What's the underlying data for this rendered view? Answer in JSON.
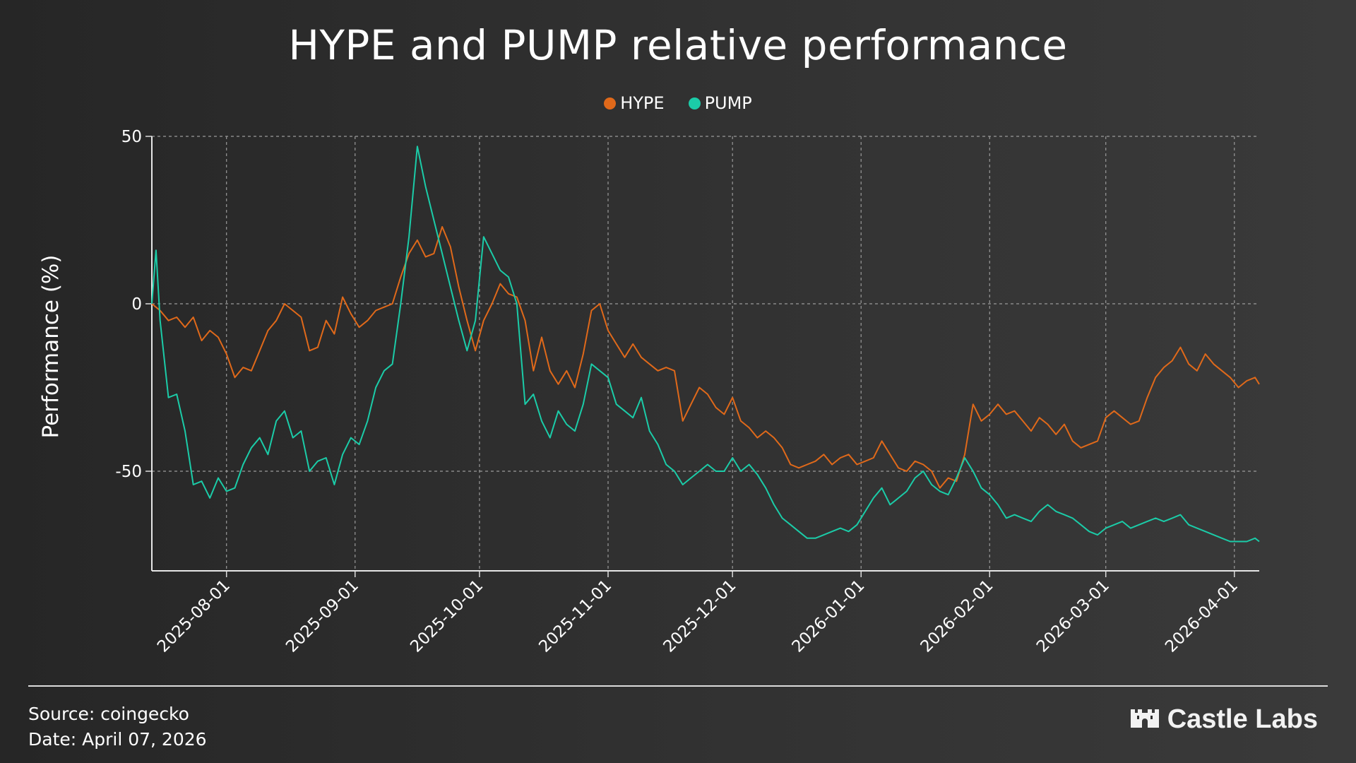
{
  "title": "HYPE and PUMP relative performance",
  "legend": [
    {
      "label": "HYPE",
      "color": "#e0691a"
    },
    {
      "label": "PUMP",
      "color": "#1bcca8"
    }
  ],
  "footer": {
    "source": "Source: coingecko",
    "date": "Date: April 07, 2026"
  },
  "logo": {
    "text": "Castle Labs",
    "icon": "castle-icon"
  },
  "chart_data": {
    "type": "line",
    "title": "HYPE and PUMP relative performance",
    "xlabel": "",
    "ylabel": "Performance (%)",
    "ylim": [
      -80,
      50
    ],
    "yticks": [
      50,
      0,
      -50
    ],
    "xticks": [
      "2025-08-01",
      "2025-09-01",
      "2025-10-01",
      "2025-11-01",
      "2025-12-01",
      "2026-01-01",
      "2026-02-01",
      "2026-03-01",
      "2026-04-01"
    ],
    "xrange": [
      "2025-07-14",
      "2026-04-07"
    ],
    "grid": true,
    "legend_position": "top-center",
    "series": [
      {
        "name": "HYPE",
        "color": "#e0691a",
        "points": [
          [
            "2025-07-14",
            0
          ],
          [
            "2025-07-16",
            -2
          ],
          [
            "2025-07-18",
            -5
          ],
          [
            "2025-07-20",
            -4
          ],
          [
            "2025-07-22",
            -7
          ],
          [
            "2025-07-24",
            -4
          ],
          [
            "2025-07-26",
            -11
          ],
          [
            "2025-07-28",
            -8
          ],
          [
            "2025-07-30",
            -10
          ],
          [
            "2025-08-01",
            -15
          ],
          [
            "2025-08-03",
            -22
          ],
          [
            "2025-08-05",
            -19
          ],
          [
            "2025-08-07",
            -20
          ],
          [
            "2025-08-09",
            -14
          ],
          [
            "2025-08-11",
            -8
          ],
          [
            "2025-08-13",
            -5
          ],
          [
            "2025-08-15",
            0
          ],
          [
            "2025-08-17",
            -2
          ],
          [
            "2025-08-19",
            -4
          ],
          [
            "2025-08-21",
            -14
          ],
          [
            "2025-08-23",
            -13
          ],
          [
            "2025-08-25",
            -5
          ],
          [
            "2025-08-27",
            -9
          ],
          [
            "2025-08-29",
            2
          ],
          [
            "2025-08-31",
            -3
          ],
          [
            "2025-09-02",
            -7
          ],
          [
            "2025-09-04",
            -5
          ],
          [
            "2025-09-06",
            -2
          ],
          [
            "2025-09-08",
            -1
          ],
          [
            "2025-09-10",
            0
          ],
          [
            "2025-09-12",
            8
          ],
          [
            "2025-09-14",
            15
          ],
          [
            "2025-09-16",
            19
          ],
          [
            "2025-09-18",
            14
          ],
          [
            "2025-09-20",
            15
          ],
          [
            "2025-09-22",
            23
          ],
          [
            "2025-09-24",
            17
          ],
          [
            "2025-09-26",
            5
          ],
          [
            "2025-09-28",
            -5
          ],
          [
            "2025-09-30",
            -14
          ],
          [
            "2025-10-02",
            -5
          ],
          [
            "2025-10-04",
            0
          ],
          [
            "2025-10-06",
            6
          ],
          [
            "2025-10-08",
            3
          ],
          [
            "2025-10-10",
            2
          ],
          [
            "2025-10-12",
            -5
          ],
          [
            "2025-10-14",
            -20
          ],
          [
            "2025-10-16",
            -10
          ],
          [
            "2025-10-18",
            -20
          ],
          [
            "2025-10-20",
            -24
          ],
          [
            "2025-10-22",
            -20
          ],
          [
            "2025-10-24",
            -25
          ],
          [
            "2025-10-26",
            -15
          ],
          [
            "2025-10-28",
            -2
          ],
          [
            "2025-10-30",
            0
          ],
          [
            "2025-11-01",
            -8
          ],
          [
            "2025-11-03",
            -12
          ],
          [
            "2025-11-05",
            -16
          ],
          [
            "2025-11-07",
            -12
          ],
          [
            "2025-11-09",
            -16
          ],
          [
            "2025-11-11",
            -18
          ],
          [
            "2025-11-13",
            -20
          ],
          [
            "2025-11-15",
            -19
          ],
          [
            "2025-11-17",
            -20
          ],
          [
            "2025-11-19",
            -35
          ],
          [
            "2025-11-21",
            -30
          ],
          [
            "2025-11-23",
            -25
          ],
          [
            "2025-11-25",
            -27
          ],
          [
            "2025-11-27",
            -31
          ],
          [
            "2025-11-29",
            -33
          ],
          [
            "2025-12-01",
            -28
          ],
          [
            "2025-12-03",
            -35
          ],
          [
            "2025-12-05",
            -37
          ],
          [
            "2025-12-07",
            -40
          ],
          [
            "2025-12-09",
            -38
          ],
          [
            "2025-12-11",
            -40
          ],
          [
            "2025-12-13",
            -43
          ],
          [
            "2025-12-15",
            -48
          ],
          [
            "2025-12-17",
            -49
          ],
          [
            "2025-12-19",
            -48
          ],
          [
            "2025-12-21",
            -47
          ],
          [
            "2025-12-23",
            -45
          ],
          [
            "2025-12-25",
            -48
          ],
          [
            "2025-12-27",
            -46
          ],
          [
            "2025-12-29",
            -45
          ],
          [
            "2025-12-31",
            -48
          ],
          [
            "2026-01-02",
            -47
          ],
          [
            "2026-01-04",
            -46
          ],
          [
            "2026-01-06",
            -41
          ],
          [
            "2026-01-08",
            -45
          ],
          [
            "2026-01-10",
            -49
          ],
          [
            "2026-01-12",
            -50
          ],
          [
            "2026-01-14",
            -47
          ],
          [
            "2026-01-16",
            -48
          ],
          [
            "2026-01-18",
            -50
          ],
          [
            "2026-01-20",
            -55
          ],
          [
            "2026-01-22",
            -52
          ],
          [
            "2026-01-24",
            -53
          ],
          [
            "2026-01-26",
            -45
          ],
          [
            "2026-01-28",
            -30
          ],
          [
            "2026-01-30",
            -35
          ],
          [
            "2026-02-01",
            -33
          ],
          [
            "2026-02-03",
            -30
          ],
          [
            "2026-02-05",
            -33
          ],
          [
            "2026-02-07",
            -32
          ],
          [
            "2026-02-09",
            -35
          ],
          [
            "2026-02-11",
            -38
          ],
          [
            "2026-02-13",
            -34
          ],
          [
            "2026-02-15",
            -36
          ],
          [
            "2026-02-17",
            -39
          ],
          [
            "2026-02-19",
            -36
          ],
          [
            "2026-02-21",
            -41
          ],
          [
            "2026-02-23",
            -43
          ],
          [
            "2026-02-25",
            -42
          ],
          [
            "2026-02-27",
            -41
          ],
          [
            "2026-03-01",
            -34
          ],
          [
            "2026-03-03",
            -32
          ],
          [
            "2026-03-05",
            -34
          ],
          [
            "2026-03-07",
            -36
          ],
          [
            "2026-03-09",
            -35
          ],
          [
            "2026-03-11",
            -28
          ],
          [
            "2026-03-13",
            -22
          ],
          [
            "2026-03-15",
            -19
          ],
          [
            "2026-03-17",
            -17
          ],
          [
            "2026-03-19",
            -13
          ],
          [
            "2026-03-21",
            -18
          ],
          [
            "2026-03-23",
            -20
          ],
          [
            "2026-03-25",
            -15
          ],
          [
            "2026-03-27",
            -18
          ],
          [
            "2026-03-29",
            -20
          ],
          [
            "2026-03-31",
            -22
          ],
          [
            "2026-04-02",
            -25
          ],
          [
            "2026-04-04",
            -23
          ],
          [
            "2026-04-06",
            -22
          ],
          [
            "2026-04-07",
            -24
          ]
        ]
      },
      {
        "name": "PUMP",
        "color": "#1bcca8",
        "points": [
          [
            "2025-07-14",
            0
          ],
          [
            "2025-07-15",
            16
          ],
          [
            "2025-07-16",
            -5
          ],
          [
            "2025-07-18",
            -28
          ],
          [
            "2025-07-20",
            -27
          ],
          [
            "2025-07-22",
            -38
          ],
          [
            "2025-07-24",
            -54
          ],
          [
            "2025-07-26",
            -53
          ],
          [
            "2025-07-28",
            -58
          ],
          [
            "2025-07-30",
            -52
          ],
          [
            "2025-08-01",
            -56
          ],
          [
            "2025-08-03",
            -55
          ],
          [
            "2025-08-05",
            -48
          ],
          [
            "2025-08-07",
            -43
          ],
          [
            "2025-08-09",
            -40
          ],
          [
            "2025-08-11",
            -45
          ],
          [
            "2025-08-13",
            -35
          ],
          [
            "2025-08-15",
            -32
          ],
          [
            "2025-08-17",
            -40
          ],
          [
            "2025-08-19",
            -38
          ],
          [
            "2025-08-21",
            -50
          ],
          [
            "2025-08-23",
            -47
          ],
          [
            "2025-08-25",
            -46
          ],
          [
            "2025-08-27",
            -54
          ],
          [
            "2025-08-29",
            -45
          ],
          [
            "2025-08-31",
            -40
          ],
          [
            "2025-09-02",
            -42
          ],
          [
            "2025-09-04",
            -35
          ],
          [
            "2025-09-06",
            -25
          ],
          [
            "2025-09-08",
            -20
          ],
          [
            "2025-09-10",
            -18
          ],
          [
            "2025-09-12",
            0
          ],
          [
            "2025-09-14",
            20
          ],
          [
            "2025-09-16",
            47
          ],
          [
            "2025-09-18",
            35
          ],
          [
            "2025-09-20",
            25
          ],
          [
            "2025-09-22",
            15
          ],
          [
            "2025-09-24",
            5
          ],
          [
            "2025-09-26",
            -5
          ],
          [
            "2025-09-28",
            -14
          ],
          [
            "2025-09-30",
            -5
          ],
          [
            "2025-10-02",
            20
          ],
          [
            "2025-10-04",
            15
          ],
          [
            "2025-10-06",
            10
          ],
          [
            "2025-10-08",
            8
          ],
          [
            "2025-10-10",
            0
          ],
          [
            "2025-10-12",
            -30
          ],
          [
            "2025-10-14",
            -27
          ],
          [
            "2025-10-16",
            -35
          ],
          [
            "2025-10-18",
            -40
          ],
          [
            "2025-10-20",
            -32
          ],
          [
            "2025-10-22",
            -36
          ],
          [
            "2025-10-24",
            -38
          ],
          [
            "2025-10-26",
            -30
          ],
          [
            "2025-10-28",
            -18
          ],
          [
            "2025-10-30",
            -20
          ],
          [
            "2025-11-01",
            -22
          ],
          [
            "2025-11-03",
            -30
          ],
          [
            "2025-11-05",
            -32
          ],
          [
            "2025-11-07",
            -34
          ],
          [
            "2025-11-09",
            -28
          ],
          [
            "2025-11-11",
            -38
          ],
          [
            "2025-11-13",
            -42
          ],
          [
            "2025-11-15",
            -48
          ],
          [
            "2025-11-17",
            -50
          ],
          [
            "2025-11-19",
            -54
          ],
          [
            "2025-11-21",
            -52
          ],
          [
            "2025-11-23",
            -50
          ],
          [
            "2025-11-25",
            -48
          ],
          [
            "2025-11-27",
            -50
          ],
          [
            "2025-11-29",
            -50
          ],
          [
            "2025-12-01",
            -46
          ],
          [
            "2025-12-03",
            -50
          ],
          [
            "2025-12-05",
            -48
          ],
          [
            "2025-12-07",
            -51
          ],
          [
            "2025-12-09",
            -55
          ],
          [
            "2025-12-11",
            -60
          ],
          [
            "2025-12-13",
            -64
          ],
          [
            "2025-12-15",
            -66
          ],
          [
            "2025-12-17",
            -68
          ],
          [
            "2025-12-19",
            -70
          ],
          [
            "2025-12-21",
            -70
          ],
          [
            "2025-12-23",
            -69
          ],
          [
            "2025-12-25",
            -68
          ],
          [
            "2025-12-27",
            -67
          ],
          [
            "2025-12-29",
            -68
          ],
          [
            "2025-12-31",
            -66
          ],
          [
            "2026-01-02",
            -62
          ],
          [
            "2026-01-04",
            -58
          ],
          [
            "2026-01-06",
            -55
          ],
          [
            "2026-01-08",
            -60
          ],
          [
            "2026-01-10",
            -58
          ],
          [
            "2026-01-12",
            -56
          ],
          [
            "2026-01-14",
            -52
          ],
          [
            "2026-01-16",
            -50
          ],
          [
            "2026-01-18",
            -54
          ],
          [
            "2026-01-20",
            -56
          ],
          [
            "2026-01-22",
            -57
          ],
          [
            "2026-01-24",
            -52
          ],
          [
            "2026-01-26",
            -46
          ],
          [
            "2026-01-28",
            -50
          ],
          [
            "2026-01-30",
            -55
          ],
          [
            "2026-02-01",
            -57
          ],
          [
            "2026-02-03",
            -60
          ],
          [
            "2026-02-05",
            -64
          ],
          [
            "2026-02-07",
            -63
          ],
          [
            "2026-02-09",
            -64
          ],
          [
            "2026-02-11",
            -65
          ],
          [
            "2026-02-13",
            -62
          ],
          [
            "2026-02-15",
            -60
          ],
          [
            "2026-02-17",
            -62
          ],
          [
            "2026-02-19",
            -63
          ],
          [
            "2026-02-21",
            -64
          ],
          [
            "2026-02-23",
            -66
          ],
          [
            "2026-02-25",
            -68
          ],
          [
            "2026-02-27",
            -69
          ],
          [
            "2026-03-01",
            -67
          ],
          [
            "2026-03-03",
            -66
          ],
          [
            "2026-03-05",
            -65
          ],
          [
            "2026-03-07",
            -67
          ],
          [
            "2026-03-09",
            -66
          ],
          [
            "2026-03-11",
            -65
          ],
          [
            "2026-03-13",
            -64
          ],
          [
            "2026-03-15",
            -65
          ],
          [
            "2026-03-17",
            -64
          ],
          [
            "2026-03-19",
            -63
          ],
          [
            "2026-03-21",
            -66
          ],
          [
            "2026-03-23",
            -67
          ],
          [
            "2026-03-25",
            -68
          ],
          [
            "2026-03-27",
            -69
          ],
          [
            "2026-03-29",
            -70
          ],
          [
            "2026-03-31",
            -71
          ],
          [
            "2026-04-02",
            -71
          ],
          [
            "2026-04-04",
            -71
          ],
          [
            "2026-04-06",
            -70
          ],
          [
            "2026-04-07",
            -71
          ]
        ]
      }
    ]
  }
}
